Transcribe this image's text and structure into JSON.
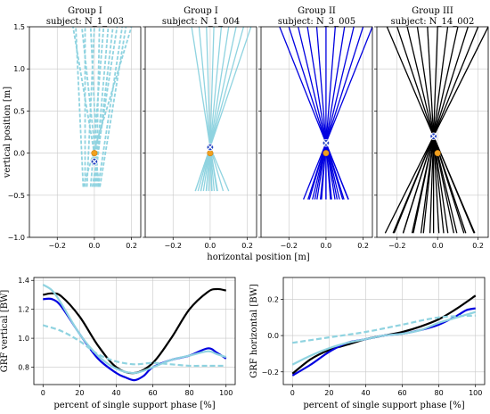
{
  "chart_data": [
    {
      "type": "line",
      "panel": "top-1",
      "title": "Group I",
      "subtitle": "subject: N_1_003",
      "xlim": [
        -0.35,
        0.25
      ],
      "ylim": [
        -1.0,
        1.5
      ],
      "xticks": [
        -0.2,
        0.0,
        0.2
      ],
      "yticks": [
        -1.0,
        -0.5,
        0.0,
        0.5,
        1.0,
        1.5
      ],
      "color": "#8fd3e0",
      "style": "dashed",
      "lines": {
        "x0": [
          -0.03,
          -0.02,
          -0.01,
          0.0,
          0.01,
          0.02,
          0.03
        ],
        "fan_left_bottom": [
          -0.06,
          -0.05,
          -0.04,
          -0.02,
          0.0,
          0.02
        ],
        "bottom_y": -0.4,
        "top_x_left": [
          -0.1,
          -0.05,
          0.0,
          0.05,
          0.1,
          0.15,
          0.2
        ],
        "top_y": 1.5
      },
      "markers": {
        "cross": [
          0.0,
          -0.1
        ],
        "dot": [
          0.0,
          0.0
        ]
      }
    },
    {
      "type": "line",
      "panel": "top-2",
      "title": "Group I",
      "subtitle": "subject: N_1_004",
      "xlim": [
        -0.35,
        0.25
      ],
      "ylim": [
        -1.0,
        1.5
      ],
      "xticks": [
        -0.2,
        0.0,
        0.2
      ],
      "yticks": [
        -1.0,
        -0.5,
        0.0,
        0.5,
        1.0,
        1.5
      ],
      "color": "#8fd3e0",
      "style": "solid",
      "lines": {
        "center": [
          0.0,
          0.07
        ],
        "top_x": [
          -0.1,
          -0.06,
          -0.02,
          0.02,
          0.06,
          0.1,
          0.14,
          0.18,
          0.22
        ],
        "bottom_x": [
          -0.08,
          -0.05,
          -0.02,
          0.01,
          0.04,
          0.07,
          0.1
        ],
        "top_y": 1.5,
        "bottom_y": -0.45
      },
      "markers": {
        "cross": [
          0.0,
          0.07
        ],
        "dot": [
          0.0,
          0.0
        ]
      }
    },
    {
      "type": "line",
      "panel": "top-3",
      "title": "Group II",
      "subtitle": "subject: N_3_005",
      "xlim": [
        -0.35,
        0.25
      ],
      "ylim": [
        -1.0,
        1.5
      ],
      "xticks": [
        -0.2,
        0.0,
        0.2
      ],
      "yticks": [
        -1.0,
        -0.5,
        0.0,
        0.5,
        1.0,
        1.5
      ],
      "color": "#0000e0",
      "style": "solid",
      "lines": {
        "center": [
          0.0,
          0.12
        ],
        "top_x": [
          -0.25,
          -0.2,
          -0.15,
          -0.1,
          -0.05,
          0.0,
          0.05,
          0.1,
          0.15,
          0.2,
          0.25
        ],
        "bottom_x": [
          -0.09,
          -0.06,
          -0.03,
          0.0,
          0.03,
          0.06,
          0.09,
          0.12
        ],
        "top_y": 1.5,
        "bottom_y": -0.55
      },
      "markers": {
        "cross": [
          0.0,
          0.12
        ],
        "dot": [
          0.0,
          0.0
        ]
      }
    },
    {
      "type": "line",
      "panel": "top-4",
      "title": "Group III",
      "subtitle": "subject: N_14_002",
      "xlim": [
        -0.3,
        0.25
      ],
      "ylim": [
        -1.0,
        1.5
      ],
      "xticks": [
        -0.2,
        0.0,
        0.2
      ],
      "yticks": [
        -1.0,
        -0.5,
        0.0,
        0.5,
        1.0,
        1.5
      ],
      "color": "#000000",
      "style": "solid",
      "lines": {
        "center": [
          -0.02,
          0.2
        ],
        "top_x": [
          -0.25,
          -0.2,
          -0.15,
          -0.1,
          -0.05,
          0.0,
          0.05,
          0.1,
          0.15,
          0.2,
          0.25
        ],
        "bottom_x": [
          -0.22,
          -0.17,
          -0.12,
          -0.07,
          -0.02,
          0.03,
          0.08,
          0.13,
          0.18
        ],
        "top_y": 1.5,
        "bottom_y": -0.95
      },
      "markers": {
        "cross": [
          -0.02,
          0.2
        ],
        "dot": [
          0.0,
          0.0
        ]
      }
    },
    {
      "type": "line",
      "panel": "bottom-left",
      "xlabel": "percent of single support phase [%]",
      "ylabel": "GRF vertical [BW]",
      "xlim": [
        -5,
        105
      ],
      "ylim": [
        0.68,
        1.42
      ],
      "xticks": [
        0,
        20,
        40,
        60,
        80,
        100
      ],
      "yticks": [
        0.8,
        1.0,
        1.2,
        1.4
      ],
      "series": [
        {
          "color": "#000000",
          "style": "solid",
          "x": [
            0,
            5,
            10,
            20,
            30,
            40,
            50,
            60,
            70,
            80,
            90,
            95,
            100
          ],
          "y": [
            1.3,
            1.31,
            1.29,
            1.15,
            0.95,
            0.8,
            0.76,
            0.83,
            1.0,
            1.2,
            1.32,
            1.34,
            1.33
          ]
        },
        {
          "color": "#0000e0",
          "style": "solid",
          "x": [
            0,
            5,
            10,
            20,
            30,
            40,
            45,
            50,
            55,
            60,
            70,
            80,
            90,
            95,
            100
          ],
          "y": [
            1.27,
            1.27,
            1.22,
            1.03,
            0.86,
            0.76,
            0.73,
            0.71,
            0.74,
            0.8,
            0.85,
            0.88,
            0.93,
            0.9,
            0.86
          ]
        },
        {
          "color": "#8fd3e0",
          "style": "solid",
          "x": [
            0,
            5,
            10,
            20,
            30,
            40,
            50,
            60,
            70,
            80,
            90,
            95,
            100
          ],
          "y": [
            1.37,
            1.33,
            1.24,
            1.03,
            0.88,
            0.79,
            0.76,
            0.8,
            0.85,
            0.88,
            0.91,
            0.89,
            0.87
          ]
        },
        {
          "color": "#8fd3e0",
          "style": "dashed",
          "x": [
            0,
            10,
            20,
            30,
            40,
            50,
            60,
            70,
            80,
            90,
            100
          ],
          "y": [
            1.09,
            1.05,
            0.98,
            0.89,
            0.84,
            0.82,
            0.83,
            0.82,
            0.81,
            0.81,
            0.81
          ]
        }
      ]
    },
    {
      "type": "line",
      "panel": "bottom-right",
      "xlabel": "percent of single support phase [%]",
      "ylabel": "GRF horizontal [BW]",
      "xlim": [
        -5,
        105
      ],
      "ylim": [
        -0.27,
        0.32
      ],
      "xticks": [
        0,
        20,
        40,
        60,
        80,
        100
      ],
      "yticks": [
        -0.2,
        0.0,
        0.2
      ],
      "series": [
        {
          "color": "#000000",
          "style": "solid",
          "x": [
            0,
            10,
            20,
            30,
            40,
            50,
            60,
            70,
            80,
            90,
            100
          ],
          "y": [
            -0.21,
            -0.13,
            -0.08,
            -0.05,
            -0.02,
            0.0,
            0.02,
            0.05,
            0.09,
            0.15,
            0.22
          ]
        },
        {
          "color": "#0000e0",
          "style": "solid",
          "x": [
            0,
            10,
            20,
            30,
            40,
            50,
            60,
            70,
            80,
            90,
            95,
            100
          ],
          "y": [
            -0.22,
            -0.16,
            -0.09,
            -0.04,
            -0.02,
            0.0,
            0.01,
            0.03,
            0.06,
            0.11,
            0.14,
            0.15
          ]
        },
        {
          "color": "#8fd3e0",
          "style": "solid",
          "x": [
            0,
            10,
            20,
            30,
            40,
            50,
            60,
            70,
            80,
            90,
            100
          ],
          "y": [
            -0.16,
            -0.11,
            -0.07,
            -0.04,
            -0.02,
            0.0,
            0.01,
            0.03,
            0.07,
            0.1,
            0.13
          ]
        },
        {
          "color": "#8fd3e0",
          "style": "dashed",
          "x": [
            0,
            20,
            40,
            60,
            80,
            100
          ],
          "y": [
            -0.04,
            -0.01,
            0.02,
            0.06,
            0.1,
            0.11
          ]
        }
      ]
    }
  ],
  "labels": {
    "top_xlabel": "horizontal position [m]",
    "top_ylabel": "vertical position [m]"
  }
}
